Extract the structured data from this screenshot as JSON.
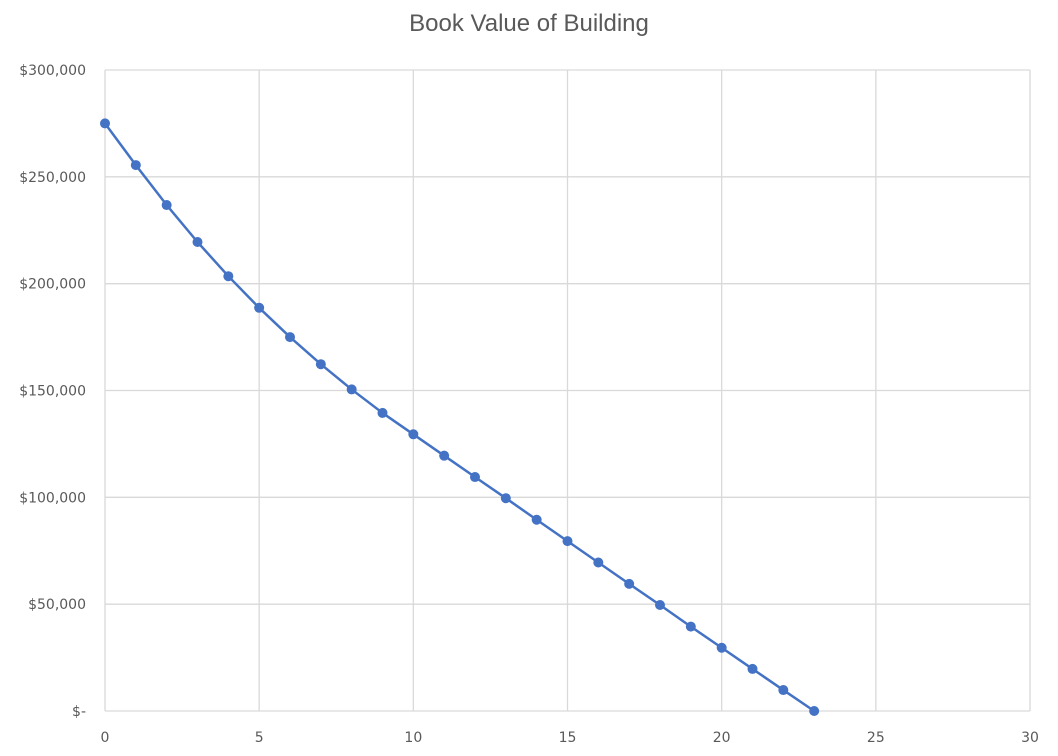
{
  "chart_data": {
    "type": "line",
    "title": "Book Value of Building",
    "xlabel": "",
    "ylabel": "",
    "xlim": [
      0,
      30
    ],
    "ylim": [
      0,
      300000
    ],
    "x_ticks": [
      0,
      5,
      10,
      15,
      20,
      25,
      30
    ],
    "y_ticks": [
      0,
      50000,
      100000,
      150000,
      200000,
      250000,
      300000
    ],
    "x_tick_labels": [
      "0",
      "5",
      "10",
      "15",
      "20",
      "25",
      "30"
    ],
    "y_tick_labels": [
      "$-",
      "$50,000",
      "$100,000",
      "$150,000",
      "$200,000",
      "$250,000",
      "$300,000"
    ],
    "grid": true,
    "legend": "none",
    "series": [
      {
        "color": "#4472C4",
        "x": [
          0,
          1,
          2,
          3,
          4,
          5,
          6,
          7,
          8,
          9,
          10,
          11,
          12,
          13,
          14,
          15,
          16,
          17,
          18,
          19,
          20,
          21,
          22,
          23
        ],
        "y": [
          275000,
          255500,
          236800,
          219500,
          203500,
          188700,
          175000,
          162300,
          150500,
          139500,
          129500,
          119500,
          109500,
          99600,
          89500,
          79500,
          69500,
          59500,
          49600,
          39500,
          29600,
          19700,
          9800,
          0
        ]
      }
    ]
  }
}
